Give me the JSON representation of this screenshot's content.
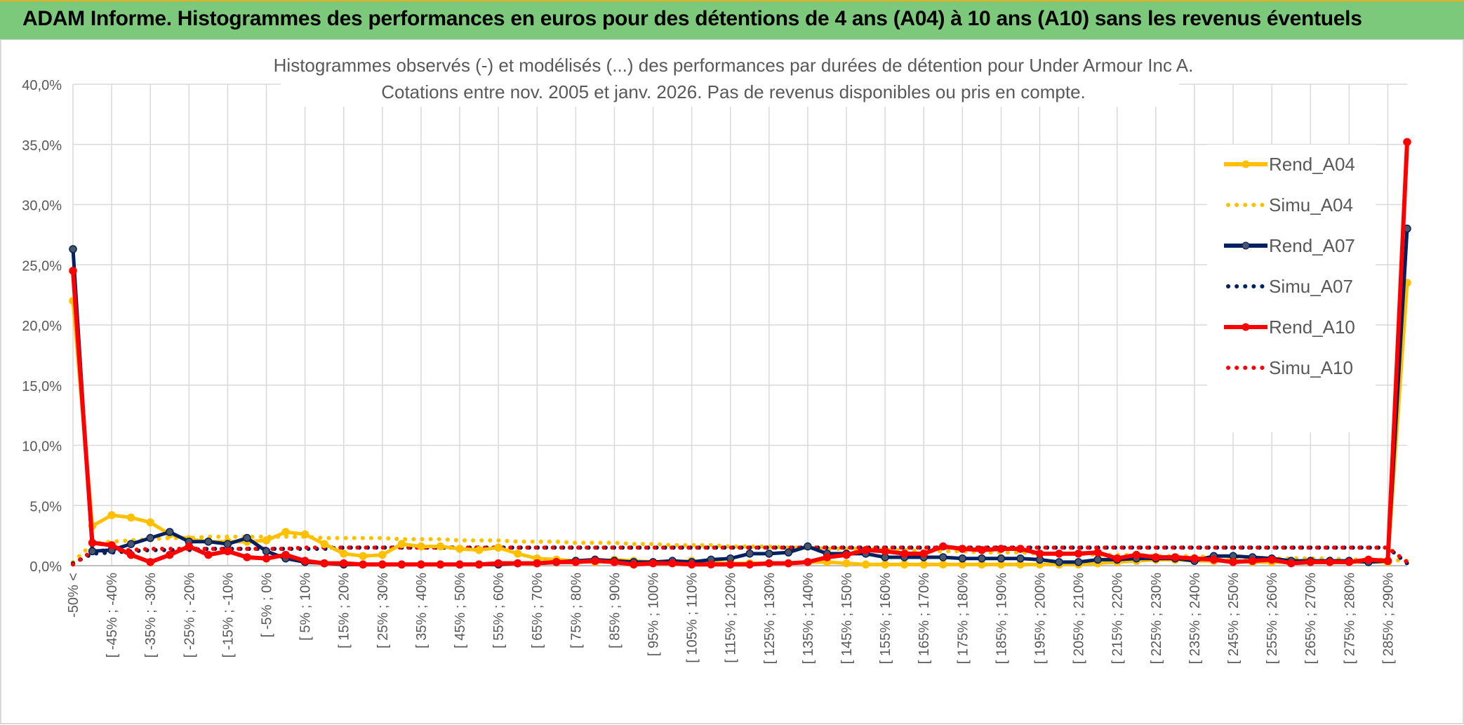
{
  "banner": {
    "title": "ADAM Informe. Histogrammes des performances en euros pour des détentions de 4 ans (A04) à 10 ans (A10) sans les revenus éventuels"
  },
  "chart_data": {
    "type": "line",
    "title_line1": "Histogrammes observés (-) et modélisés (...) des performances par durées de détention pour Under Armour Inc A.",
    "title_line2": "Cotations entre nov. 2005 et janv. 2026. Pas de revenus disponibles ou pris en compte.",
    "ylim": [
      0,
      40
    ],
    "yticks": [
      "0,0%",
      "5,0%",
      "10,0%",
      "15,0%",
      "20,0%",
      "25,0%",
      "30,0%",
      "35,0%",
      "40,0%"
    ],
    "category_labels": [
      "-50% <",
      "[ -45% ; -40%",
      "[ -35% ; -30%",
      "[ -25% ; -20%",
      "[ -15% ; -10%",
      "[ -5% ; 0%",
      "[ 5% ; 10%",
      "[ 15% ; 20%",
      "[ 25% ; 30%",
      "[ 35% ; 40%",
      "[ 45% ; 50%",
      "[ 55% ; 60%",
      "[ 65% ; 70%",
      "[ 75% ; 80%",
      "[ 85% ; 90%",
      "[ 95% ; 100%",
      "[ 105% ; 110%",
      "[ 115% ; 120%",
      "[ 125% ; 130%",
      "[ 135% ; 140%",
      "[ 145% ; 150%",
      "[ 155% ; 160%",
      "[ 165% ; 170%",
      "[ 175% ; 180%",
      "[ 185% ; 190%",
      "[ 195% ; 200%",
      "[ 205% ; 210%",
      "[ 215% ; 220%",
      "[ 225% ; 230%",
      "[ 235% ; 240%",
      "[ 245% ; 250%",
      "[ 255% ; 260%",
      "[ 265% ; 270%",
      "[ 275% ; 280%",
      "[ 285% ; 290%"
    ],
    "n_points": 70,
    "legend_position": "right",
    "series": [
      {
        "name": "Rend_A04",
        "color": "#ffc000",
        "style": "solid",
        "markers": true,
        "values": [
          22.0,
          3.3,
          4.2,
          4.0,
          3.6,
          2.6,
          2.2,
          2.0,
          2.0,
          2.0,
          2.1,
          2.8,
          2.6,
          1.8,
          1.0,
          0.8,
          0.9,
          1.8,
          1.6,
          1.6,
          1.4,
          1.3,
          1.5,
          1.0,
          0.6,
          0.5,
          0.4,
          0.3,
          0.5,
          0.4,
          0.3,
          0.3,
          0.4,
          0.3,
          0.2,
          0.2,
          0.2,
          0.2,
          0.3,
          0.3,
          0.2,
          0.1,
          0.1,
          0.1,
          0.1,
          0.1,
          0.1,
          0.1,
          0.1,
          0.1,
          0.1,
          0.1,
          0.1,
          0.2,
          0.3,
          0.4,
          0.5,
          0.5,
          0.4,
          0.4,
          0.4,
          0.3,
          0.3,
          0.3,
          0.3,
          0.3,
          0.3,
          0.3,
          0.3,
          23.5
        ]
      },
      {
        "name": "Simu_A04",
        "color": "#ffc000",
        "style": "dotted",
        "markers": false,
        "values": [
          0.3,
          1.8,
          2.0,
          2.1,
          2.2,
          2.3,
          2.3,
          2.4,
          2.4,
          2.4,
          2.4,
          2.4,
          2.4,
          2.3,
          2.3,
          2.3,
          2.3,
          2.2,
          2.2,
          2.2,
          2.1,
          2.1,
          2.1,
          2.0,
          2.0,
          2.0,
          1.9,
          1.9,
          1.9,
          1.8,
          1.8,
          1.7,
          1.7,
          1.7,
          1.6,
          1.6,
          1.6,
          1.5,
          1.5,
          1.4,
          1.4,
          1.4,
          1.3,
          1.3,
          1.2,
          1.2,
          1.2,
          1.1,
          1.1,
          1.1,
          1.0,
          1.0,
          1.0,
          0.9,
          0.9,
          0.9,
          0.8,
          0.8,
          0.8,
          0.7,
          0.7,
          0.7,
          0.6,
          0.6,
          0.6,
          0.6,
          0.5,
          0.5,
          0.5,
          0.4
        ]
      },
      {
        "name": "Rend_A07",
        "color": "#002060",
        "style": "solid",
        "markers": true,
        "values": [
          26.3,
          1.2,
          1.3,
          1.8,
          2.3,
          2.8,
          2.0,
          2.0,
          1.8,
          2.3,
          1.2,
          0.6,
          0.3,
          0.2,
          0.1,
          0.1,
          0.1,
          0.1,
          0.1,
          0.1,
          0.1,
          0.1,
          0.1,
          0.2,
          0.2,
          0.3,
          0.4,
          0.5,
          0.4,
          0.3,
          0.3,
          0.4,
          0.3,
          0.5,
          0.6,
          1.0,
          1.0,
          1.1,
          1.6,
          1.0,
          1.0,
          1.0,
          0.7,
          0.7,
          0.7,
          0.7,
          0.6,
          0.6,
          0.6,
          0.6,
          0.5,
          0.3,
          0.3,
          0.5,
          0.5,
          0.6,
          0.6,
          0.6,
          0.4,
          0.8,
          0.8,
          0.7,
          0.6,
          0.4,
          0.4,
          0.4,
          0.4,
          0.3,
          0.4,
          28.0
        ]
      },
      {
        "name": "Simu_A07",
        "color": "#002060",
        "style": "dotted",
        "markers": false,
        "values": [
          0.2,
          1.0,
          1.1,
          1.2,
          1.3,
          1.3,
          1.3,
          1.4,
          1.4,
          1.4,
          1.4,
          1.4,
          1.4,
          1.4,
          1.5,
          1.5,
          1.5,
          1.5,
          1.5,
          1.5,
          1.5,
          1.5,
          1.5,
          1.5,
          1.5,
          1.5,
          1.5,
          1.5,
          1.5,
          1.5,
          1.5,
          1.5,
          1.5,
          1.5,
          1.5,
          1.5,
          1.5,
          1.5,
          1.5,
          1.5,
          1.5,
          1.5,
          1.5,
          1.5,
          1.5,
          1.5,
          1.5,
          1.5,
          1.5,
          1.5,
          1.5,
          1.5,
          1.5,
          1.5,
          1.5,
          1.5,
          1.5,
          1.5,
          1.5,
          1.5,
          1.5,
          1.5,
          1.5,
          1.5,
          1.5,
          1.5,
          1.5,
          1.5,
          1.5,
          0.2
        ]
      },
      {
        "name": "Rend_A10",
        "color": "#ff0000",
        "style": "solid",
        "markers": true,
        "values": [
          24.5,
          1.9,
          1.7,
          0.9,
          0.3,
          0.9,
          1.6,
          0.9,
          1.2,
          0.7,
          0.6,
          0.9,
          0.4,
          0.2,
          0.2,
          0.1,
          0.1,
          0.1,
          0.1,
          0.1,
          0.1,
          0.1,
          0.2,
          0.2,
          0.2,
          0.3,
          0.3,
          0.4,
          0.3,
          0.1,
          0.2,
          0.2,
          0.1,
          0.1,
          0.1,
          0.1,
          0.2,
          0.2,
          0.3,
          0.7,
          0.9,
          1.3,
          1.2,
          1.0,
          1.0,
          1.6,
          1.4,
          1.3,
          1.4,
          1.4,
          1.0,
          1.0,
          1.0,
          1.1,
          0.6,
          0.9,
          0.7,
          0.7,
          0.6,
          0.5,
          0.3,
          0.4,
          0.5,
          0.2,
          0.3,
          0.3,
          0.3,
          0.5,
          0.4,
          35.2
        ]
      },
      {
        "name": "Simu_A10",
        "color": "#ff0000",
        "style": "dotted",
        "markers": false,
        "values": [
          0.1,
          1.2,
          1.3,
          1.3,
          1.4,
          1.4,
          1.4,
          1.4,
          1.4,
          1.4,
          1.4,
          1.4,
          1.5,
          1.5,
          1.5,
          1.5,
          1.5,
          1.5,
          1.5,
          1.5,
          1.5,
          1.5,
          1.5,
          1.5,
          1.5,
          1.5,
          1.5,
          1.5,
          1.5,
          1.5,
          1.5,
          1.5,
          1.5,
          1.5,
          1.5,
          1.5,
          1.5,
          1.5,
          1.5,
          1.5,
          1.5,
          1.5,
          1.5,
          1.5,
          1.5,
          1.5,
          1.5,
          1.5,
          1.5,
          1.5,
          1.5,
          1.5,
          1.5,
          1.5,
          1.5,
          1.5,
          1.5,
          1.5,
          1.5,
          1.5,
          1.5,
          1.5,
          1.5,
          1.5,
          1.5,
          1.5,
          1.5,
          1.5,
          1.5,
          0.3
        ]
      }
    ]
  }
}
